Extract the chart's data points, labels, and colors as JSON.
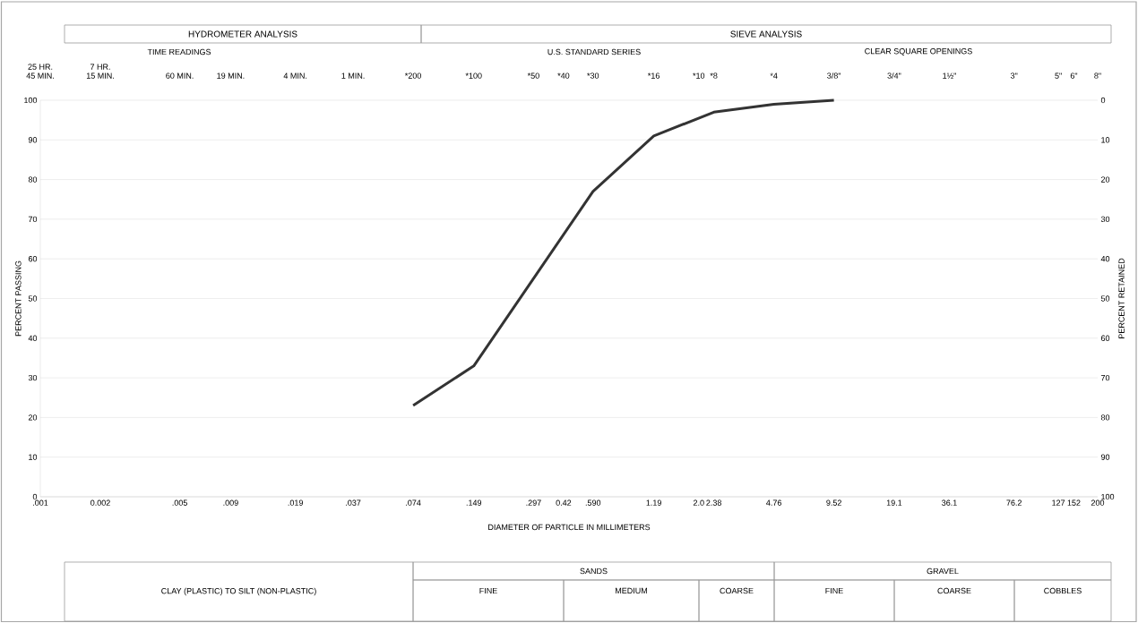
{
  "chart_data": {
    "type": "line",
    "xlabel": "DIAMETER OF PARTICLE IN MILLIMETERS",
    "ylabel": "PERCENT PASSING",
    "y2label": "PERCENT RETAINED",
    "log": "x",
    "grid": "y",
    "color": "#333333",
    "x": [
      0.074,
      0.149,
      0.59,
      1.19,
      2.38,
      4.76,
      9.52
    ],
    "values": [
      23,
      33,
      77,
      91,
      97,
      99,
      100
    ],
    "xlim": [
      0.001,
      200
    ],
    "ylim": [
      0,
      100
    ],
    "y2lim": [
      100,
      0
    ],
    "yticks": [
      0,
      10,
      20,
      30,
      40,
      50,
      60,
      70,
      80,
      90,
      100
    ],
    "y2ticks": [
      0,
      10,
      20,
      30,
      40,
      50,
      60,
      70,
      80,
      90,
      100
    ],
    "xticks": [
      {
        "value": 0.001,
        "label": ".001"
      },
      {
        "value": 0.002,
        "label": "0.002"
      },
      {
        "value": 0.005,
        "label": ".005"
      },
      {
        "value": 0.009,
        "label": ".009"
      },
      {
        "value": 0.019,
        "label": ".019"
      },
      {
        "value": 0.037,
        "label": ".037"
      },
      {
        "value": 0.074,
        "label": ".074"
      },
      {
        "value": 0.149,
        "label": ".149"
      },
      {
        "value": 0.297,
        "label": ".297"
      },
      {
        "value": 0.42,
        "label": "0.42"
      },
      {
        "value": 0.59,
        "label": ".590"
      },
      1.19,
      {
        "value": 2.0,
        "label": "2.0"
      },
      2.38,
      4.76,
      9.52,
      19.1,
      36.1,
      76.2,
      127,
      152,
      200
    ],
    "annotations": [
      "HYDROMETER ANALYSIS",
      "SIEVE ANALYSIS",
      "TIME READINGS",
      "U.S. STANDARD SERIES",
      "CLEAR SQUARE OPENINGS",
      "CLAY (PLASTIC) TO SILT (NON-PLASTIC)",
      "SANDS",
      "GRAVEL",
      "FINE",
      "MEDIUM",
      "COARSE",
      "FINE",
      "COARSE",
      "COBBLES",
      "25 HR. 45 MIN.",
      "7 HR. 15 MIN.",
      "60 MIN.",
      "19 MIN.",
      "4 MIN.",
      "1 MIN.",
      "*200",
      "*100",
      "*50",
      "*40",
      "*30",
      "*16",
      "*10",
      "*8",
      "*4",
      "3/8\"",
      "3/4\"",
      "1½\"",
      "3\"",
      "5\"",
      "6\"",
      "8\""
    ]
  }
}
